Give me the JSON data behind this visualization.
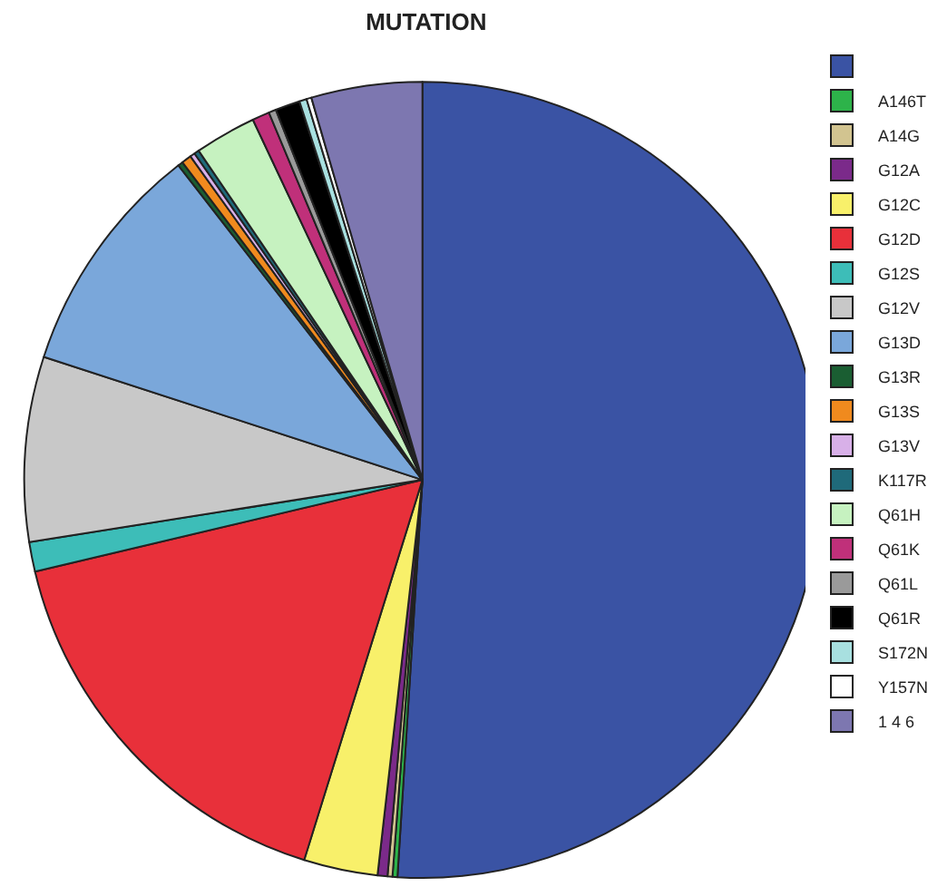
{
  "chart_data": {
    "type": "pie",
    "title": "MUTATION",
    "categories": [
      null,
      "A146T",
      "A14G",
      "G12A",
      "G12C",
      "G12D",
      "G12S",
      "G12V",
      "G13D",
      "G13R",
      "G13S",
      "G13V",
      "K117R",
      "Q61H",
      "Q61K",
      "Q61L",
      "Q61R",
      "S172N",
      "Y157N",
      "1 4 6"
    ],
    "values": [
      51,
      0.2,
      0.2,
      0.4,
      3,
      16.5,
      1.2,
      7.5,
      9.5,
      0.2,
      0.4,
      0.2,
      0.2,
      2.5,
      0.7,
      0.3,
      1,
      0.3,
      0.2,
      4.5
    ],
    "colors": [
      "#3a53a4",
      "#2db34a",
      "#d2c490",
      "#7b2a8a",
      "#f8f06a",
      "#e8303a",
      "#3dbdb8",
      "#c8c8c8",
      "#7aa7da",
      "#1a5e32",
      "#f08a1e",
      "#d8b0e8",
      "#1f6a7a",
      "#c6f2c0",
      "#c0307a",
      "#9a9a9a",
      "#000000",
      "#a8e0e0",
      "#ffffff",
      "#7d77b0"
    ],
    "legend": "top right"
  }
}
